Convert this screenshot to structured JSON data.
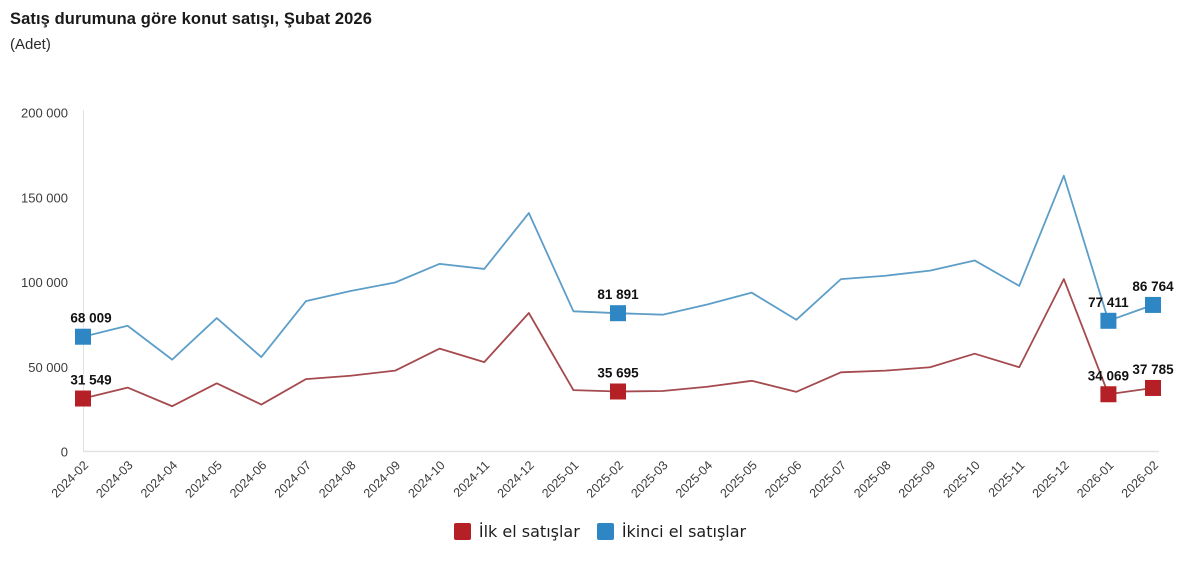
{
  "header": {
    "title": "Satış durumuna göre konut satışı, Şubat 2026",
    "unit_label": "(Adet)"
  },
  "chart_data": {
    "type": "line",
    "title": "Satış durumuna göre konut satışı, Şubat 2026",
    "unit_label": "(Adet)",
    "categories": [
      "2024-02",
      "2024-03",
      "2024-04",
      "2024-05",
      "2024-06",
      "2024-07",
      "2024-08",
      "2024-09",
      "2024-10",
      "2024-11",
      "2024-12",
      "2025-01",
      "2025-02",
      "2025-03",
      "2025-04",
      "2025-05",
      "2025-06",
      "2025-07",
      "2025-08",
      "2025-09",
      "2025-10",
      "2025-11",
      "2025-12",
      "2026-01",
      "2026-02"
    ],
    "series": [
      {
        "name": "İlk el satışlar",
        "marker_color": "#b42025",
        "line_color": "#a54a4e",
        "values": [
          31549,
          38000,
          27000,
          40500,
          28000,
          43000,
          45000,
          48000,
          61000,
          53000,
          82000,
          36500,
          35695,
          36000,
          38500,
          42000,
          35500,
          47000,
          48000,
          50000,
          58000,
          50000,
          102000,
          34069,
          37785
        ],
        "data_labels": {
          "0": "31 549",
          "12": "35 695",
          "23": "34 069",
          "24": "37 785"
        }
      },
      {
        "name": "İkinci el satışlar",
        "marker_color": "#2e86c4",
        "line_color": "#5d9ec8",
        "values": [
          68009,
          74500,
          54500,
          79000,
          56000,
          89000,
          95000,
          100000,
          111000,
          108000,
          141000,
          83000,
          81891,
          81000,
          87000,
          94000,
          78000,
          102000,
          104000,
          107000,
          113000,
          98000,
          163000,
          77411,
          86764
        ],
        "data_labels": {
          "0": "68 009",
          "12": "81 891",
          "23": "77 411",
          "24": "86 764"
        }
      }
    ],
    "ylim": [
      0,
      200000
    ],
    "yticks": [
      0,
      50000,
      100000,
      150000,
      200000
    ],
    "ytick_labels": [
      "0",
      "50 000",
      "100 000",
      "150 000",
      "200 000"
    ],
    "grid": "none",
    "legend_position": "bottom",
    "axis_color": "#e2e2e2",
    "tick_text_color": "#3c3c3c",
    "data_label_color": "#111111"
  }
}
